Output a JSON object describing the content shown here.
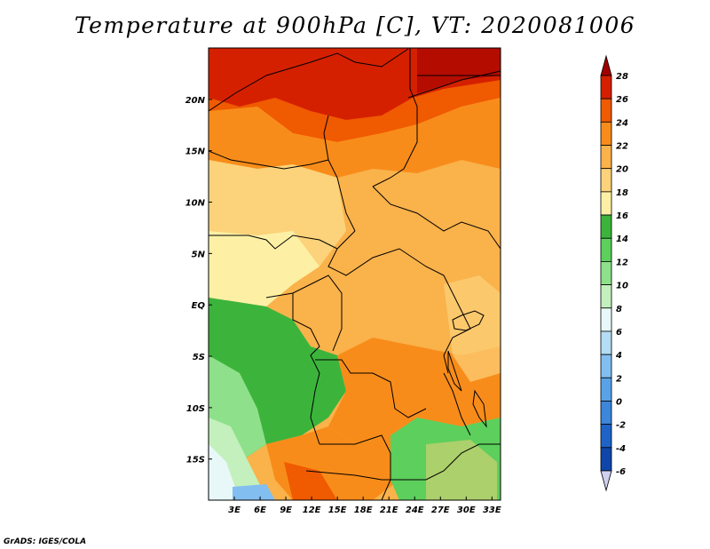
{
  "title": "Temperature at 900hPa [C], VT: 2020081006",
  "footer": "GrADS: IGES/COLA",
  "map": {
    "lon_range": [
      0,
      34
    ],
    "lat_range": [
      -19,
      25
    ],
    "lon_ticks": [
      "3E",
      "6E",
      "9E",
      "12E",
      "15E",
      "18E",
      "21E",
      "24E",
      "27E",
      "30E",
      "33E"
    ],
    "lat_ticks": [
      "20N",
      "15N",
      "10N",
      "5N",
      "EQ",
      "5S",
      "10S",
      "15S"
    ]
  },
  "colorbar": {
    "levels": [
      "28",
      "26",
      "24",
      "22",
      "20",
      "18",
      "16",
      "14",
      "12",
      "10",
      "8",
      "6",
      "4",
      "2",
      "0",
      "-2",
      "-4",
      "-6"
    ],
    "colors": [
      "#a00000",
      "#d52000",
      "#f05a00",
      "#f88c1a",
      "#fab24a",
      "#fcd27a",
      "#fdf0a5",
      "#3cb43c",
      "#5ccf5c",
      "#8ee08a",
      "#c3f0bc",
      "#e8f8f8",
      "#b4dcf4",
      "#82bef0",
      "#5aa2e8",
      "#3c86dc",
      "#1e64c8",
      "#0f46aa",
      "#0a1e6e"
    ],
    "top_arrow_color": "#a00000",
    "bottom_arrow_color": "#d0d0f0"
  }
}
